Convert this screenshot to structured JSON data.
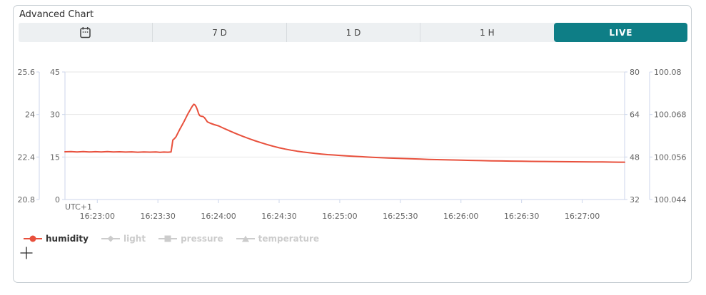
{
  "card": {
    "title": "Advanced Chart"
  },
  "toolbar": {
    "active_color": "#0e7e86",
    "buttons": [
      {
        "id": "calendar",
        "icon": "calendar-icon",
        "label": ""
      },
      {
        "id": "7d",
        "label": "7 D"
      },
      {
        "id": "1d",
        "label": "1 D"
      },
      {
        "id": "1h",
        "label": "1 H"
      },
      {
        "id": "live",
        "label": "LIVE",
        "active": true
      }
    ]
  },
  "chart_data": {
    "type": "line",
    "title": "",
    "timezone_label": "UTC+1",
    "colors": {
      "grid_line": "#e6e6e6",
      "axis_line": "#ccd6eb",
      "tick_text": "#666666",
      "legend_active_text": "#333333",
      "legend_inactive": "#cccccc",
      "humidity_line": "#e8503c"
    },
    "x": {
      "range_seconds": [
        -16,
        261
      ],
      "base_time": "16:23:00",
      "ticks": [
        {
          "t": 0,
          "label": "16:23:00"
        },
        {
          "t": 30,
          "label": "16:23:30"
        },
        {
          "t": 60,
          "label": "16:24:00"
        },
        {
          "t": 90,
          "label": "16:24:30"
        },
        {
          "t": 120,
          "label": "16:25:00"
        },
        {
          "t": 150,
          "label": "16:25:30"
        },
        {
          "t": 180,
          "label": "16:26:00"
        },
        {
          "t": 210,
          "label": "16:26:30"
        },
        {
          "t": 240,
          "label": "16:27:00"
        }
      ]
    },
    "y_axes": [
      {
        "name": "temperature",
        "position": "left-outer",
        "range": [
          20.8,
          25.6
        ],
        "tick_labels": [
          "25.6",
          "24",
          "22.4",
          "20.8"
        ]
      },
      {
        "name": "humidity",
        "position": "left-inner",
        "range": [
          0,
          45
        ],
        "tick_labels": [
          "45",
          "30",
          "15",
          "0"
        ]
      },
      {
        "name": "light",
        "position": "right-inner",
        "range": [
          32,
          80
        ],
        "tick_labels": [
          "80",
          "64",
          "48",
          "32"
        ]
      },
      {
        "name": "pressure",
        "position": "right-outer",
        "range": [
          100.044,
          100.08
        ],
        "tick_labels": [
          "100.08",
          "100.068",
          "100.056",
          "100.044"
        ]
      }
    ],
    "series": [
      {
        "name": "humidity",
        "color": "#e8503c",
        "axis": "humidity",
        "points": [
          [
            -16,
            16.85
          ],
          [
            -13,
            16.92
          ],
          [
            -10,
            16.8
          ],
          [
            -7,
            16.9
          ],
          [
            -4,
            16.78
          ],
          [
            -1,
            16.88
          ],
          [
            2,
            16.8
          ],
          [
            5,
            16.9
          ],
          [
            8,
            16.78
          ],
          [
            11,
            16.85
          ],
          [
            14,
            16.75
          ],
          [
            17,
            16.82
          ],
          [
            20,
            16.7
          ],
          [
            23,
            16.78
          ],
          [
            26,
            16.72
          ],
          [
            29,
            16.78
          ],
          [
            31,
            16.68
          ],
          [
            33,
            16.74
          ],
          [
            35,
            16.7
          ],
          [
            36.5,
            16.78
          ],
          [
            37,
            19.0
          ],
          [
            37.4,
            21.0
          ],
          [
            38.2,
            21.5
          ],
          [
            39,
            22.2
          ],
          [
            40,
            23.6
          ],
          [
            41,
            25.0
          ],
          [
            42,
            26.3
          ],
          [
            43,
            27.6
          ],
          [
            44,
            29.0
          ],
          [
            45,
            30.4
          ],
          [
            45.8,
            31.4
          ],
          [
            46.5,
            32.3
          ],
          [
            47.2,
            33.1
          ],
          [
            47.8,
            33.6
          ],
          [
            48.4,
            33.3
          ],
          [
            49,
            32.6
          ],
          [
            49.6,
            31.5
          ],
          [
            50.2,
            30.2
          ],
          [
            50.7,
            29.6
          ],
          [
            51.4,
            29.4
          ],
          [
            52.3,
            29.3
          ],
          [
            53,
            28.9
          ],
          [
            53.8,
            28.1
          ],
          [
            54.5,
            27.4
          ],
          [
            56,
            26.9
          ],
          [
            58,
            26.4
          ],
          [
            60,
            26.0
          ],
          [
            63,
            25.0
          ],
          [
            66,
            24.05
          ],
          [
            69,
            23.15
          ],
          [
            72,
            22.3
          ],
          [
            75,
            21.5
          ],
          [
            78,
            20.75
          ],
          [
            81,
            20.05
          ],
          [
            84,
            19.4
          ],
          [
            87,
            18.8
          ],
          [
            90,
            18.25
          ],
          [
            93,
            17.8
          ],
          [
            96,
            17.4
          ],
          [
            99,
            17.05
          ],
          [
            102,
            16.75
          ],
          [
            105,
            16.5
          ],
          [
            108,
            16.25
          ],
          [
            111,
            16.05
          ],
          [
            114,
            15.85
          ],
          [
            117,
            15.7
          ],
          [
            120,
            15.55
          ],
          [
            124,
            15.35
          ],
          [
            128,
            15.2
          ],
          [
            132,
            15.05
          ],
          [
            136,
            14.9
          ],
          [
            140,
            14.78
          ],
          [
            144,
            14.65
          ],
          [
            148,
            14.55
          ],
          [
            152,
            14.45
          ],
          [
            156,
            14.35
          ],
          [
            160,
            14.25
          ],
          [
            164,
            14.15
          ],
          [
            168,
            14.08
          ],
          [
            172,
            14.0
          ],
          [
            176,
            13.95
          ],
          [
            180,
            13.88
          ],
          [
            185,
            13.8
          ],
          [
            190,
            13.72
          ],
          [
            195,
            13.65
          ],
          [
            200,
            13.6
          ],
          [
            205,
            13.55
          ],
          [
            210,
            13.5
          ],
          [
            215,
            13.45
          ],
          [
            220,
            13.42
          ],
          [
            225,
            13.4
          ],
          [
            230,
            13.36
          ],
          [
            235,
            13.33
          ],
          [
            240,
            13.3
          ],
          [
            245,
            13.27
          ],
          [
            250,
            13.24
          ],
          [
            255,
            13.2
          ],
          [
            258,
            13.18
          ],
          [
            261,
            13.18
          ]
        ]
      }
    ],
    "legend": [
      {
        "label": "humidity",
        "marker": "circle",
        "active": true,
        "color": "#e8503c"
      },
      {
        "label": "light",
        "marker": "diamond",
        "active": false,
        "color": "#cccccc"
      },
      {
        "label": "pressure",
        "marker": "square",
        "active": false,
        "color": "#cccccc"
      },
      {
        "label": "temperature",
        "marker": "triangle",
        "active": false,
        "color": "#cccccc"
      }
    ]
  }
}
